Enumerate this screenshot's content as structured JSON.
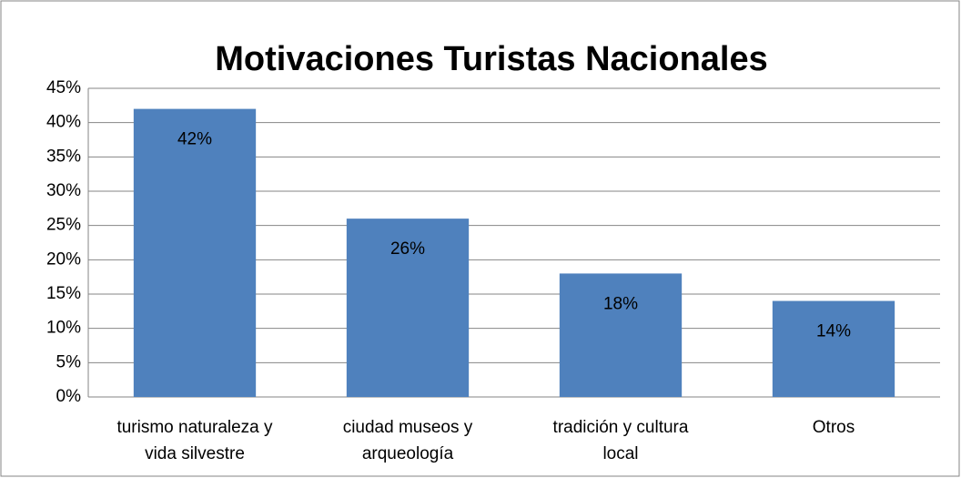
{
  "chart_data": {
    "type": "bar",
    "title": "Motivaciones Turistas Nacionales",
    "categories": [
      "turismo naturaleza y vida silvestre",
      "ciudad museos y arqueología",
      "tradición y cultura local",
      "Otros"
    ],
    "values": [
      42,
      26,
      18,
      14
    ],
    "value_labels": [
      "42%",
      "26%",
      "18%",
      "14%"
    ],
    "color": "#4f81bd",
    "ylim": [
      0,
      45
    ],
    "yticks": [
      {
        "value": 0,
        "label": "0%"
      },
      {
        "value": 5,
        "label": "5%"
      },
      {
        "value": 10,
        "label": "10%"
      },
      {
        "value": 15,
        "label": "15%"
      },
      {
        "value": 20,
        "label": "20%"
      },
      {
        "value": 25,
        "label": "25%"
      },
      {
        "value": 30,
        "label": "30%"
      },
      {
        "value": 35,
        "label": "35%"
      },
      {
        "value": 40,
        "label": "40%"
      },
      {
        "value": 45,
        "label": "45%"
      }
    ],
    "grid": true
  }
}
